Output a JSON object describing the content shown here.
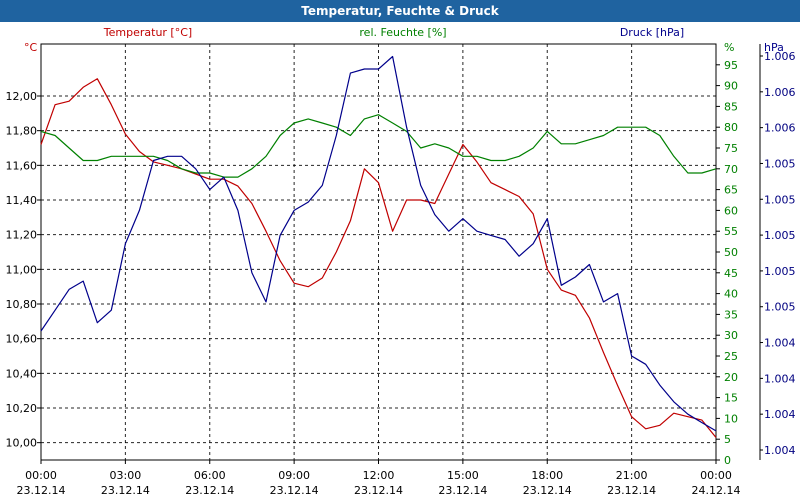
{
  "window": {
    "title": "Temperatur, Feuchte & Druck"
  },
  "chart_data": {
    "type": "line",
    "title": "Temperatur, Feuchte & Druck",
    "grid": true,
    "legend": "top",
    "x": [
      "00:00",
      "00:30",
      "01:00",
      "01:30",
      "02:00",
      "02:30",
      "03:00",
      "03:30",
      "04:00",
      "04:30",
      "05:00",
      "05:30",
      "06:00",
      "06:30",
      "07:00",
      "07:30",
      "08:00",
      "08:30",
      "09:00",
      "09:30",
      "10:00",
      "10:30",
      "11:00",
      "11:30",
      "12:00",
      "12:30",
      "13:00",
      "13:30",
      "14:00",
      "14:30",
      "15:00",
      "15:30",
      "16:00",
      "16:30",
      "17:00",
      "17:30",
      "18:00",
      "18:30",
      "19:00",
      "19:30",
      "20:00",
      "20:30",
      "21:00",
      "21:30",
      "22:00",
      "22:30",
      "23:00",
      "23:30",
      "24:00"
    ],
    "xticks": [
      {
        "time": "00:00",
        "date": "23.12.14"
      },
      {
        "time": "03:00",
        "date": "23.12.14"
      },
      {
        "time": "06:00",
        "date": "23.12.14"
      },
      {
        "time": "09:00",
        "date": "23.12.14"
      },
      {
        "time": "12:00",
        "date": "23.12.14"
      },
      {
        "time": "15:00",
        "date": "23.12.14"
      },
      {
        "time": "18:00",
        "date": "23.12.14"
      },
      {
        "time": "21:00",
        "date": "23.12.14"
      },
      {
        "time": "00:00",
        "date": "24.12.14"
      }
    ],
    "axes": {
      "temperature": {
        "label": "Temperatur [°C]",
        "unit": "°C",
        "color": "#c00000",
        "ylim": [
          9.9,
          12.3
        ],
        "ticks": [
          "10,00",
          "10,20",
          "10,40",
          "10,60",
          "10,80",
          "11,00",
          "11,20",
          "11,40",
          "11,60",
          "11,80",
          "12,00"
        ]
      },
      "humidity": {
        "label": "rel. Feuchte [%]",
        "unit": "%",
        "color": "#008000",
        "ylim": [
          0,
          100
        ],
        "ticks": [
          "0",
          "5",
          "10",
          "15",
          "20",
          "25",
          "30",
          "35",
          "40",
          "45",
          "50",
          "55",
          "60",
          "65",
          "70",
          "75",
          "80",
          "85",
          "90",
          "95"
        ]
      },
      "pressure": {
        "label": "Druck [hPa]",
        "unit": "hPa",
        "color": "#00008b",
        "ylim": [
          0,
          100
        ],
        "ticks": [
          "1.004",
          "1.004",
          "1.004",
          "1.004",
          "1.005",
          "1.005",
          "1.005",
          "1.005",
          "1.005",
          "1.006",
          "1.006",
          "1.006"
        ]
      }
    },
    "series": [
      {
        "name": "Temperatur [°C]",
        "axis": "temperature",
        "color": "#c00000",
        "values": [
          11.72,
          11.95,
          11.97,
          12.05,
          12.1,
          11.95,
          11.78,
          11.68,
          11.62,
          11.6,
          11.58,
          11.55,
          11.52,
          11.52,
          11.48,
          11.38,
          11.22,
          11.05,
          10.92,
          10.9,
          10.95,
          11.1,
          11.28,
          11.58,
          11.5,
          11.22,
          11.4,
          11.4,
          11.38,
          11.55,
          11.72,
          11.62,
          11.5,
          11.46,
          11.42,
          11.32,
          11.0,
          10.88,
          10.85,
          10.72,
          10.52,
          10.33,
          10.15,
          10.08,
          10.1,
          10.17,
          10.15,
          10.13,
          10.03
        ]
      },
      {
        "name": "rel. Feuchte [%]",
        "axis": "humidity",
        "color": "#008000",
        "values": [
          79,
          78,
          75,
          72,
          72,
          73,
          73,
          73,
          73,
          72,
          70,
          69,
          69,
          68,
          68,
          70,
          73,
          78,
          81,
          82,
          81,
          80,
          78,
          82,
          83,
          81,
          79,
          75,
          76,
          75,
          73,
          73,
          72,
          72,
          73,
          75,
          79,
          76,
          76,
          77,
          78,
          80,
          80,
          80,
          78,
          73,
          69,
          69,
          70
        ]
      },
      {
        "name": "Druck [hPa]",
        "axis": "pressure",
        "color": "#00008b",
        "values": [
          31,
          36,
          41,
          43,
          33,
          36,
          52,
          60,
          72,
          73,
          73,
          70,
          65,
          68,
          60,
          45,
          38,
          54,
          60,
          62,
          66,
          78,
          93,
          94,
          94,
          97,
          80,
          66,
          59,
          55,
          58,
          55,
          54,
          53,
          49,
          52,
          58,
          42,
          44,
          47,
          38,
          40,
          25,
          23,
          18,
          14,
          11,
          9,
          7
        ]
      }
    ]
  }
}
